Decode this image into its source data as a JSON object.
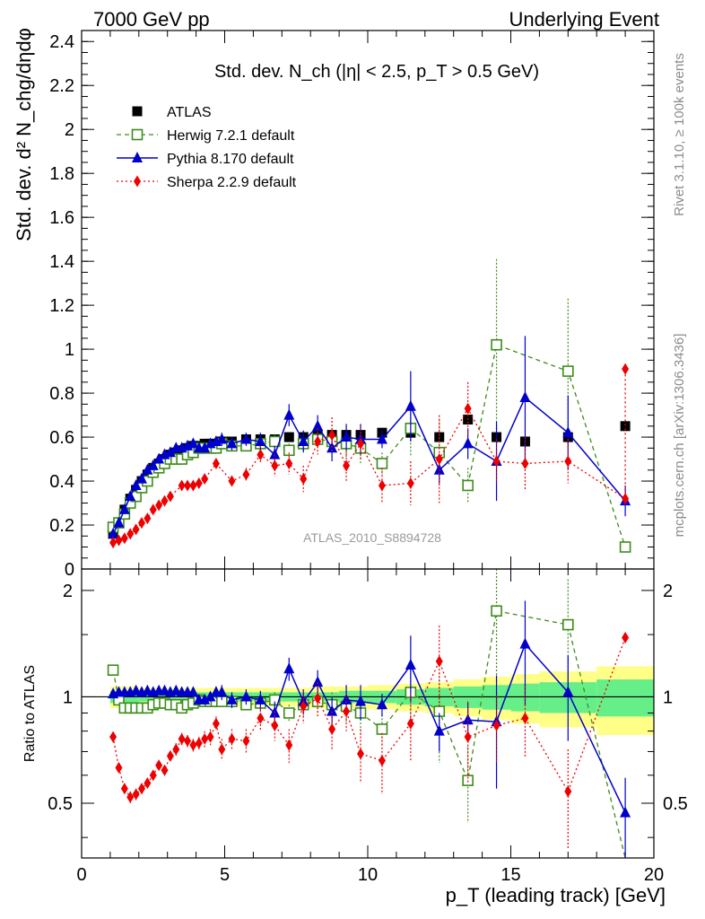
{
  "header": {
    "left": "7000 GeV pp",
    "right": "Underlying Event"
  },
  "side_labels": {
    "rivet": "Rivet 3.1.10, ≥ 100k events",
    "mcplots": "mcplots.cern.ch [arXiv:1306.3436]"
  },
  "colors": {
    "atlas": "#000000",
    "herwig": "#3d8c1a",
    "pythia": "#0000cc",
    "sherpa": "#ee0000",
    "band_inner": "#66ee88",
    "band_outer": "#ffff88"
  },
  "chart_data": [
    {
      "type": "scatter",
      "panel": "main",
      "title": "Std. dev. N_ch (|η| < 2.5, p_T > 0.5 GeV)",
      "ylabel": "Std. dev. d² N_chg/dηdφ",
      "watermark": "ATLAS_2010_S8894728",
      "xlim": [
        0,
        20
      ],
      "ylim": [
        0,
        2.45
      ],
      "x_ticks": [
        0,
        5,
        10,
        15,
        20
      ],
      "y_ticks": [
        0,
        0.2,
        0.4,
        0.6,
        0.8,
        1,
        1.2,
        1.4,
        1.6,
        1.8,
        2,
        2.2,
        2.4
      ],
      "y_tick_labels": [
        "0",
        "0.2",
        "0.4",
        "0.6",
        "0.8",
        "1",
        "1.2",
        "1.4",
        "1.6",
        "1.8",
        "2",
        "2.2",
        "2.4"
      ],
      "legend_position": "top-left",
      "x": [
        1.1,
        1.3,
        1.5,
        1.7,
        1.9,
        2.1,
        2.3,
        2.5,
        2.7,
        2.9,
        3.1,
        3.3,
        3.5,
        3.7,
        3.9,
        4.1,
        4.3,
        4.5,
        4.7,
        4.9,
        5.25,
        5.75,
        6.25,
        6.75,
        7.25,
        7.75,
        8.25,
        8.75,
        9.25,
        9.75,
        10.5,
        11.5,
        12.5,
        13.5,
        14.5,
        15.5,
        17.0,
        19.0
      ],
      "series": [
        {
          "name": "ATLAS",
          "style": "data",
          "values": [
            0.16,
            0.21,
            0.27,
            0.32,
            0.36,
            0.4,
            0.43,
            0.46,
            0.48,
            0.5,
            0.52,
            0.53,
            0.54,
            0.55,
            0.56,
            0.56,
            0.57,
            0.57,
            0.57,
            0.58,
            0.58,
            0.59,
            0.59,
            0.59,
            0.6,
            0.6,
            0.61,
            0.61,
            0.61,
            0.61,
            0.62,
            0.62,
            0.6,
            0.68,
            0.6,
            0.58,
            0.6,
            0.65
          ]
        },
        {
          "name": "Herwig 7.2.1 default",
          "style": "herwig",
          "values": [
            0.19,
            0.21,
            0.25,
            0.3,
            0.33,
            0.37,
            0.4,
            0.44,
            0.46,
            0.48,
            0.5,
            0.5,
            0.5,
            0.52,
            0.53,
            0.55,
            0.55,
            0.55,
            0.55,
            0.57,
            0.56,
            0.56,
            0.57,
            0.58,
            0.54,
            0.57,
            0.59,
            0.58,
            0.57,
            0.55,
            0.48,
            0.64,
            0.53,
            0.38,
            1.02,
            null,
            0.9,
            0.1
          ],
          "errors": [
            0.01,
            0.01,
            0.01,
            0.01,
            0.01,
            0.01,
            0.01,
            0.01,
            0.01,
            0.01,
            0.01,
            0.01,
            0.01,
            0.01,
            0.01,
            0.01,
            0.01,
            0.01,
            0.01,
            0.01,
            0.01,
            0.02,
            0.02,
            0.03,
            0.03,
            0.04,
            0.05,
            0.05,
            0.06,
            0.07,
            0.05,
            0.13,
            0.15,
            0.08,
            0.39,
            null,
            0.33,
            0.0
          ]
        },
        {
          "name": "Pythia 8.170 default",
          "style": "pythia",
          "values": [
            0.16,
            0.21,
            0.27,
            0.33,
            0.38,
            0.41,
            0.45,
            0.47,
            0.5,
            0.52,
            0.53,
            0.55,
            0.55,
            0.56,
            0.57,
            0.55,
            0.55,
            0.57,
            0.58,
            0.59,
            0.57,
            0.59,
            0.58,
            0.52,
            0.7,
            0.58,
            0.65,
            0.55,
            0.6,
            0.59,
            0.59,
            0.74,
            0.45,
            0.57,
            0.49,
            0.78,
            0.62,
            0.31
          ],
          "errors": [
            0.01,
            0.01,
            0.01,
            0.01,
            0.01,
            0.01,
            0.01,
            0.01,
            0.01,
            0.01,
            0.01,
            0.01,
            0.01,
            0.01,
            0.01,
            0.02,
            0.02,
            0.02,
            0.02,
            0.03,
            0.03,
            0.03,
            0.04,
            0.04,
            0.05,
            0.05,
            0.05,
            0.06,
            0.06,
            0.07,
            0.04,
            0.16,
            0.06,
            0.07,
            0.18,
            0.28,
            0.17,
            0.07
          ]
        },
        {
          "name": "Sherpa 2.2.9 default",
          "style": "sherpa",
          "values": [
            0.12,
            0.13,
            0.14,
            0.16,
            0.18,
            0.21,
            0.23,
            0.27,
            0.29,
            0.31,
            0.33,
            0.38,
            0.38,
            0.38,
            0.39,
            0.41,
            0.48,
            0.4,
            0.43,
            0.52,
            0.47,
            0.48,
            0.41,
            0.58,
            0.61,
            0.47,
            0.57,
            0.38,
            0.39,
            0.5,
            0.73,
            0.49,
            0.48,
            0.49,
            0.32,
            0.91
          ],
          "x_override": [
            1.1,
            1.3,
            1.5,
            1.7,
            1.9,
            2.1,
            2.3,
            2.5,
            2.7,
            2.9,
            3.1,
            3.5,
            3.7,
            3.9,
            4.1,
            4.3,
            4.7,
            5.25,
            5.75,
            6.25,
            6.75,
            7.25,
            7.75,
            8.25,
            8.75,
            9.25,
            9.75,
            10.5,
            11.5,
            12.5,
            13.5,
            14.5,
            15.5,
            17.0,
            19.0,
            19.0
          ],
          "errors": [
            0.01,
            0.01,
            0.01,
            0.01,
            0.01,
            0.01,
            0.01,
            0.01,
            0.01,
            0.01,
            0.01,
            0.02,
            0.02,
            0.02,
            0.02,
            0.02,
            0.02,
            0.02,
            0.03,
            0.04,
            0.05,
            0.05,
            0.06,
            0.06,
            0.08,
            0.07,
            0.07,
            0.08,
            0.1,
            0.2,
            0.12,
            0.1,
            0.12,
            0.1,
            0.03,
            0.0
          ]
        }
      ]
    },
    {
      "type": "line",
      "panel": "ratio",
      "ylabel": "Ratio to ATLAS",
      "xlabel": "p_T (leading track) [GeV]",
      "xlim": [
        0,
        20
      ],
      "ylim": [
        0.35,
        2.3
      ],
      "x_ticks": [
        0,
        5,
        10,
        15,
        20
      ],
      "x_tick_labels": [
        "0",
        "5",
        "10",
        "15",
        "20"
      ],
      "y_ticks": [
        0.5,
        1,
        2
      ],
      "y_tick_labels": [
        "0.5",
        "1",
        "2"
      ],
      "band": {
        "x_edges": [
          1.0,
          2.0,
          3.0,
          4.0,
          5.0,
          6.0,
          7.0,
          8.0,
          9.0,
          10.0,
          11.0,
          12.0,
          13.0,
          14.0,
          15.0,
          16.0,
          18.0,
          20.0
        ],
        "inner": [
          0.04,
          0.03,
          0.03,
          0.03,
          0.03,
          0.03,
          0.03,
          0.03,
          0.04,
          0.04,
          0.05,
          0.06,
          0.07,
          0.08,
          0.09,
          0.1,
          0.12
        ],
        "outer": [
          0.07,
          0.06,
          0.06,
          0.06,
          0.06,
          0.06,
          0.06,
          0.07,
          0.07,
          0.08,
          0.09,
          0.1,
          0.12,
          0.14,
          0.16,
          0.18,
          0.22
        ]
      },
      "series": [
        {
          "name": "Herwig 7.2.1 default",
          "style": "herwig",
          "x": [
            1.1,
            1.3,
            1.5,
            1.7,
            1.9,
            2.1,
            2.3,
            2.5,
            2.7,
            2.9,
            3.1,
            3.3,
            3.5,
            3.7,
            3.9,
            4.1,
            4.3,
            4.5,
            4.7,
            4.9,
            5.25,
            5.75,
            6.25,
            6.75,
            7.25,
            7.75,
            8.25,
            8.75,
            9.25,
            9.75,
            10.5,
            11.5,
            12.5,
            13.5,
            14.5,
            17.0,
            19.0
          ],
          "values": [
            1.19,
            0.98,
            0.93,
            0.93,
            0.93,
            0.93,
            0.93,
            0.95,
            0.96,
            0.96,
            0.95,
            0.95,
            0.93,
            0.95,
            0.96,
            0.98,
            0.97,
            0.97,
            0.97,
            0.97,
            0.97,
            0.95,
            0.96,
            0.98,
            0.9,
            0.95,
            0.97,
            0.95,
            0.94,
            0.9,
            0.81,
            1.03,
            0.91,
            0.58,
            1.75,
            1.6,
            0.15
          ],
          "errors": [
            0.02,
            0.02,
            0.02,
            0.02,
            0.02,
            0.02,
            0.02,
            0.02,
            0.02,
            0.02,
            0.02,
            0.02,
            0.02,
            0.02,
            0.02,
            0.02,
            0.02,
            0.02,
            0.02,
            0.02,
            0.03,
            0.03,
            0.04,
            0.05,
            0.05,
            0.07,
            0.08,
            0.08,
            0.09,
            0.12,
            0.08,
            0.22,
            0.26,
            0.14,
            0.65,
            0.55,
            0.0
          ]
        },
        {
          "name": "Pythia 8.170 default",
          "style": "pythia",
          "x": [
            1.1,
            1.3,
            1.5,
            1.7,
            1.9,
            2.1,
            2.3,
            2.5,
            2.7,
            2.9,
            3.1,
            3.3,
            3.5,
            3.7,
            3.9,
            4.1,
            4.3,
            4.5,
            4.7,
            4.9,
            5.25,
            5.75,
            6.25,
            6.75,
            7.25,
            7.75,
            8.25,
            8.75,
            9.25,
            9.75,
            10.5,
            11.5,
            12.5,
            13.5,
            14.5,
            15.5,
            17.0,
            19.0
          ],
          "values": [
            1.02,
            1.03,
            1.03,
            1.03,
            1.04,
            1.03,
            1.04,
            1.03,
            1.04,
            1.04,
            1.03,
            1.04,
            1.03,
            1.03,
            1.03,
            0.98,
            0.98,
            1.0,
            1.03,
            1.03,
            0.98,
            1.0,
            0.98,
            0.9,
            1.2,
            0.97,
            1.1,
            0.91,
            0.98,
            0.97,
            0.95,
            1.23,
            0.8,
            0.86,
            0.85,
            1.41,
            1.03,
            0.47
          ],
          "errors": [
            0.02,
            0.02,
            0.02,
            0.02,
            0.02,
            0.02,
            0.02,
            0.02,
            0.02,
            0.02,
            0.02,
            0.02,
            0.02,
            0.02,
            0.02,
            0.03,
            0.03,
            0.03,
            0.04,
            0.05,
            0.05,
            0.05,
            0.06,
            0.07,
            0.09,
            0.08,
            0.09,
            0.09,
            0.1,
            0.11,
            0.07,
            0.26,
            0.1,
            0.1,
            0.3,
            0.46,
            0.28,
            0.12
          ]
        },
        {
          "name": "Sherpa 2.2.9 default",
          "style": "sherpa",
          "x": [
            1.1,
            1.3,
            1.5,
            1.7,
            1.9,
            2.1,
            2.3,
            2.5,
            2.7,
            2.9,
            3.1,
            3.3,
            3.5,
            3.7,
            3.9,
            4.1,
            4.3,
            4.5,
            4.7,
            4.9,
            5.25,
            5.75,
            6.25,
            6.75,
            7.25,
            7.75,
            8.25,
            8.75,
            9.25,
            9.75,
            10.5,
            11.5,
            12.5,
            13.5,
            14.5,
            15.5,
            17.0,
            19.0
          ],
          "values": [
            0.77,
            0.63,
            0.55,
            0.52,
            0.53,
            0.55,
            0.57,
            0.6,
            0.64,
            0.62,
            0.68,
            0.71,
            0.76,
            0.75,
            0.73,
            0.74,
            0.76,
            0.77,
            0.84,
            0.71,
            0.76,
            0.75,
            0.87,
            0.83,
            0.73,
            0.94,
            0.99,
            0.81,
            0.91,
            0.69,
            0.66,
            0.84,
            1.26,
            0.77,
            0.83,
            0.87,
            0.54,
            1.47
          ],
          "errors": [
            0.02,
            0.02,
            0.02,
            0.02,
            0.02,
            0.02,
            0.02,
            0.02,
            0.02,
            0.02,
            0.02,
            0.03,
            0.03,
            0.03,
            0.03,
            0.03,
            0.04,
            0.04,
            0.04,
            0.05,
            0.05,
            0.06,
            0.07,
            0.08,
            0.08,
            0.1,
            0.11,
            0.1,
            0.11,
            0.12,
            0.13,
            0.18,
            0.33,
            0.2,
            0.18,
            0.2,
            0.17,
            0.05
          ]
        }
      ]
    }
  ]
}
